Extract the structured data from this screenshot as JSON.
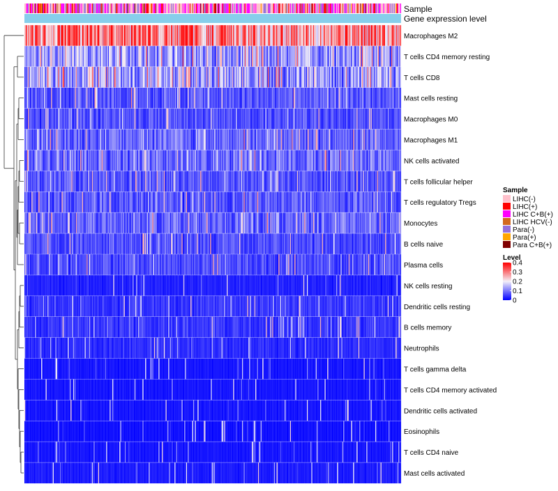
{
  "chart_data": {
    "type": "heatmap",
    "annotation_tracks": [
      "Sample",
      "Gene expression level"
    ],
    "rows": [
      {
        "label": "Macrophages M2",
        "mean_level": 0.3
      },
      {
        "label": "T cells CD4 memory resting",
        "mean_level": 0.13
      },
      {
        "label": "T cells CD8",
        "mean_level": 0.13
      },
      {
        "label": "Mast cells resting",
        "mean_level": 0.07
      },
      {
        "label": "Macrophages M0",
        "mean_level": 0.06
      },
      {
        "label": "Macrophages M1",
        "mean_level": 0.08
      },
      {
        "label": "NK cells activated",
        "mean_level": 0.09
      },
      {
        "label": "T cells follicular helper",
        "mean_level": 0.07
      },
      {
        "label": "T cells regulatory  Tregs",
        "mean_level": 0.07
      },
      {
        "label": "Monocytes",
        "mean_level": 0.08
      },
      {
        "label": "B cells naive",
        "mean_level": 0.06
      },
      {
        "label": "Plasma cells",
        "mean_level": 0.06
      },
      {
        "label": "NK cells resting",
        "mean_level": 0.02
      },
      {
        "label": "Dendritic cells resting",
        "mean_level": 0.04
      },
      {
        "label": "B cells memory",
        "mean_level": 0.04
      },
      {
        "label": "Neutrophils",
        "mean_level": 0.03
      },
      {
        "label": "T cells gamma delta",
        "mean_level": 0.01
      },
      {
        "label": "T cells CD4 memory activated",
        "mean_level": 0.01
      },
      {
        "label": "Dendritic cells activated",
        "mean_level": 0.01
      },
      {
        "label": "Eosinophils",
        "mean_level": 0.005
      },
      {
        "label": "T cells CD4 naive",
        "mean_level": 0.01
      },
      {
        "label": "Mast cells activated",
        "mean_level": 0.015
      }
    ],
    "n_columns": 424,
    "color_scale": {
      "title": "Level",
      "min": 0,
      "max": 0.4,
      "stops": [
        {
          "value": 0,
          "color": "#0000ff"
        },
        {
          "value": 0.2,
          "color": "#f4f0f8"
        },
        {
          "value": 0.4,
          "color": "#ff0000"
        }
      ],
      "ticks": [
        "0.4",
        "0.3",
        "0.2",
        "0.1",
        "0"
      ]
    },
    "sample_legend": {
      "title": "Sample",
      "entries": [
        {
          "label": "LIHC(-)",
          "color": "#ffc0cb"
        },
        {
          "label": "LIHC(+)",
          "color": "#ff0000"
        },
        {
          "label": "LIHC C+B(+)",
          "color": "#ff00ff"
        },
        {
          "label": "LIHC HCV(-)",
          "color": "#d2691e"
        },
        {
          "label": "Para(-)",
          "color": "#9370db"
        },
        {
          "label": "Para(+)",
          "color": "#ffa500"
        },
        {
          "label": "Para C+B(+)",
          "color": "#800000"
        }
      ]
    },
    "gene_expression_bar_color": "#87ceeb",
    "row_dendrogram": true
  }
}
